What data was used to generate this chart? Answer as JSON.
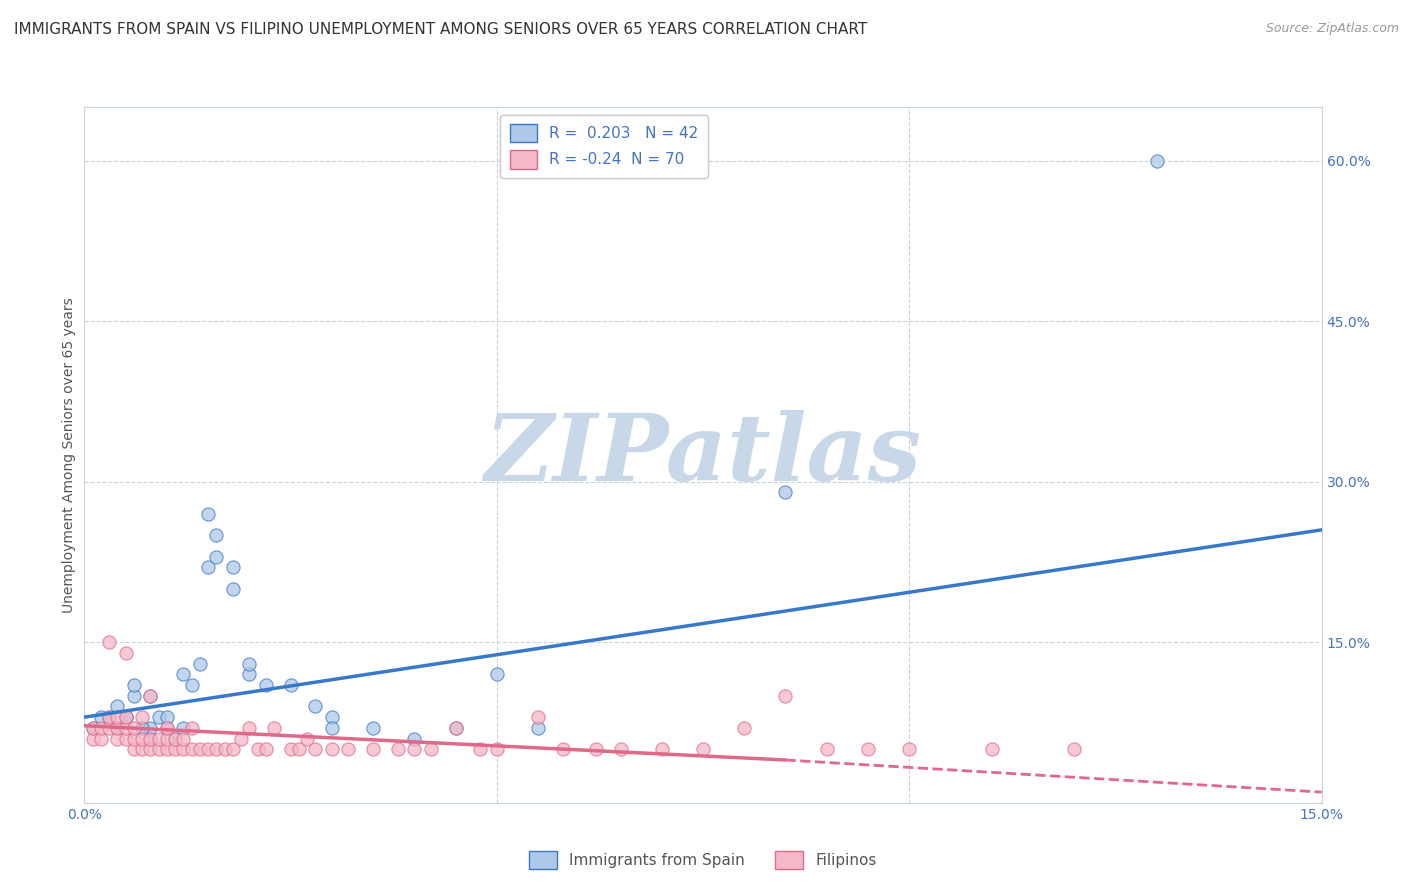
{
  "title": "IMMIGRANTS FROM SPAIN VS FILIPINO UNEMPLOYMENT AMONG SENIORS OVER 65 YEARS CORRELATION CHART",
  "source": "Source: ZipAtlas.com",
  "ylabel_left": "Unemployment Among Seniors over 65 years",
  "series1_label": "Immigrants from Spain",
  "series2_label": "Filipinos",
  "series1_R": 0.203,
  "series1_N": 42,
  "series2_R": -0.24,
  "series2_N": 70,
  "series1_color": "#adc8e8",
  "series2_color": "#f5b8c8",
  "series1_line_color": "#3878c8",
  "series2_line_color": "#e06888",
  "xlim": [
    0.0,
    0.15
  ],
  "ylim": [
    0.0,
    0.65
  ],
  "yticks_right": [
    0.15,
    0.3,
    0.45,
    0.6
  ],
  "ytick_right_labels": [
    "15.0%",
    "30.0%",
    "45.0%",
    "60.0%"
  ],
  "watermark": "ZIPatlas",
  "watermark_color": "#c8d8e8",
  "background_color": "#ffffff",
  "grid_color": "#c8d4dc",
  "title_fontsize": 11,
  "axis_label_fontsize": 10,
  "tick_fontsize": 10,
  "legend_fontsize": 11,
  "trendline1_x0": 0.0,
  "trendline1_y0": 0.08,
  "trendline1_x1": 0.15,
  "trendline1_y1": 0.255,
  "trendline2_x0": 0.0,
  "trendline2_y0": 0.072,
  "trendline2_solid_x1": 0.085,
  "trendline2_dash_x1": 0.15,
  "trendline2_y_at_solid": 0.04,
  "trendline2_y_at_dash": 0.01,
  "series1_x": [
    0.001,
    0.002,
    0.003,
    0.004,
    0.005,
    0.006,
    0.007,
    0.008,
    0.008,
    0.01,
    0.011,
    0.012,
    0.013,
    0.015,
    0.016,
    0.018,
    0.02,
    0.022,
    0.025,
    0.028,
    0.03,
    0.035,
    0.04,
    0.045,
    0.05,
    0.055,
    0.085,
    0.13,
    0.004,
    0.005,
    0.006,
    0.007,
    0.008,
    0.009,
    0.01,
    0.012,
    0.014,
    0.016,
    0.018,
    0.02,
    0.015,
    0.03
  ],
  "series1_y": [
    0.07,
    0.08,
    0.08,
    0.07,
    0.08,
    0.1,
    0.07,
    0.06,
    0.07,
    0.07,
    0.06,
    0.07,
    0.11,
    0.22,
    0.23,
    0.2,
    0.12,
    0.11,
    0.11,
    0.09,
    0.08,
    0.07,
    0.06,
    0.07,
    0.12,
    0.07,
    0.29,
    0.6,
    0.09,
    0.08,
    0.11,
    0.07,
    0.1,
    0.08,
    0.08,
    0.12,
    0.13,
    0.25,
    0.22,
    0.13,
    0.27,
    0.07
  ],
  "series2_x": [
    0.001,
    0.001,
    0.002,
    0.002,
    0.003,
    0.003,
    0.003,
    0.004,
    0.004,
    0.004,
    0.005,
    0.005,
    0.005,
    0.005,
    0.006,
    0.006,
    0.006,
    0.007,
    0.007,
    0.007,
    0.008,
    0.008,
    0.008,
    0.009,
    0.009,
    0.01,
    0.01,
    0.01,
    0.011,
    0.011,
    0.012,
    0.012,
    0.013,
    0.013,
    0.014,
    0.015,
    0.016,
    0.017,
    0.018,
    0.019,
    0.02,
    0.021,
    0.022,
    0.023,
    0.025,
    0.026,
    0.027,
    0.028,
    0.03,
    0.032,
    0.035,
    0.038,
    0.04,
    0.042,
    0.045,
    0.048,
    0.05,
    0.055,
    0.058,
    0.062,
    0.065,
    0.07,
    0.075,
    0.08,
    0.09,
    0.095,
    0.1,
    0.11,
    0.12,
    0.085
  ],
  "series2_y": [
    0.06,
    0.07,
    0.06,
    0.07,
    0.07,
    0.08,
    0.15,
    0.06,
    0.07,
    0.08,
    0.06,
    0.07,
    0.08,
    0.14,
    0.05,
    0.06,
    0.07,
    0.05,
    0.06,
    0.08,
    0.05,
    0.06,
    0.1,
    0.05,
    0.06,
    0.05,
    0.06,
    0.07,
    0.05,
    0.06,
    0.05,
    0.06,
    0.05,
    0.07,
    0.05,
    0.05,
    0.05,
    0.05,
    0.05,
    0.06,
    0.07,
    0.05,
    0.05,
    0.07,
    0.05,
    0.05,
    0.06,
    0.05,
    0.05,
    0.05,
    0.05,
    0.05,
    0.05,
    0.05,
    0.07,
    0.05,
    0.05,
    0.08,
    0.05,
    0.05,
    0.05,
    0.05,
    0.05,
    0.07,
    0.05,
    0.05,
    0.05,
    0.05,
    0.05,
    0.1
  ]
}
